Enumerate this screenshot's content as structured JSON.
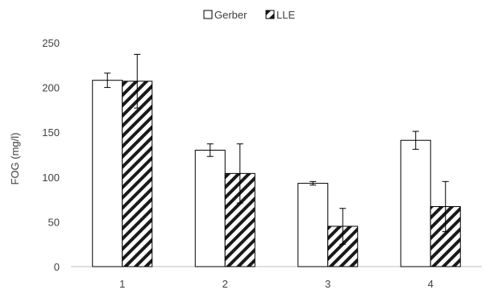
{
  "chart_data": {
    "type": "bar",
    "categories": [
      "1",
      "2",
      "3",
      "4"
    ],
    "series": [
      {
        "name": "Gerber",
        "values": [
          208,
          130,
          93,
          141
        ],
        "error": [
          8,
          7,
          2,
          10
        ],
        "fill": "#ffffff",
        "pattern": "none"
      },
      {
        "name": "LLE",
        "values": [
          207,
          104,
          45,
          67
        ],
        "error": [
          30,
          33,
          20,
          28
        ],
        "fill": "#ffffff",
        "pattern": "diagonal-hatch"
      }
    ],
    "ylabel": "FOG (mg/l)",
    "xlabel": "",
    "ylim": [
      0,
      250
    ],
    "yticks": [
      0,
      50,
      100,
      150,
      200,
      250
    ],
    "grid": false,
    "legend_position": "top-center",
    "colors": {
      "bar_stroke": "#000000",
      "hatch": "#1a1a1a",
      "axis": "#bfbfbf",
      "text": "#404040"
    }
  }
}
